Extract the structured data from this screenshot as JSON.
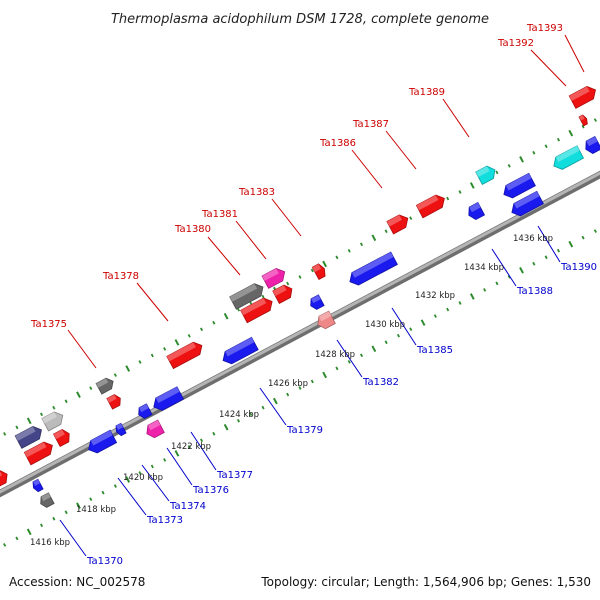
{
  "title": "Thermoplasma acidophilum DSM 1728, complete genome",
  "footer": {
    "accession": "Accession: NC_002578",
    "summary": "Topology: circular; Length: 1,564,906 bp; Genes: 1,530"
  },
  "colors": {
    "forward_label": "#cc0000",
    "reverse_label": "#0000cc",
    "backbone": "#888888",
    "tick": "#2e8b2e",
    "red": "#ee1111",
    "blue": "#1a1aee",
    "cyan": "#11dddd",
    "magenta": "#ee22aa",
    "gray": "#666666",
    "silver": "#bbbbbb",
    "pink": "#ee8888",
    "navy": "#444488"
  },
  "scale_labels": [
    "1416 kbp",
    "1418 kbp",
    "1420 kbp",
    "1422 kbp",
    "1424 kbp",
    "1426 kbp",
    "1428 kbp",
    "1430 kbp",
    "1432 kbp",
    "1434 kbp",
    "1436 kbp"
  ],
  "forward_labels": [
    "Ta1375",
    "Ta1378",
    "Ta1380",
    "Ta1381",
    "Ta1383",
    "Ta1386",
    "Ta1387",
    "Ta1389",
    "Ta1392",
    "Ta1393"
  ],
  "reverse_labels": [
    "Ta1370",
    "Ta1373",
    "Ta1374",
    "Ta1376",
    "Ta1377",
    "Ta1379",
    "Ta1382",
    "Ta1385",
    "Ta1388",
    "Ta1390"
  ],
  "features": [
    {
      "strand": "forward",
      "color": "red"
    },
    {
      "strand": "forward",
      "color": "navy"
    },
    {
      "strand": "forward",
      "color": "red"
    },
    {
      "strand": "forward",
      "color": "silver"
    },
    {
      "strand": "forward",
      "color": "red"
    },
    {
      "strand": "forward",
      "color": "gray"
    },
    {
      "strand": "forward",
      "color": "red"
    },
    {
      "strand": "forward",
      "color": "gray"
    },
    {
      "strand": "forward",
      "color": "red"
    },
    {
      "strand": "forward",
      "color": "magenta"
    },
    {
      "strand": "forward",
      "color": "red"
    },
    {
      "strand": "forward",
      "color": "red"
    },
    {
      "strand": "forward",
      "color": "red"
    },
    {
      "strand": "forward",
      "color": "red"
    },
    {
      "strand": "forward",
      "color": "red"
    },
    {
      "strand": "forward",
      "color": "cyan"
    },
    {
      "strand": "forward",
      "color": "red"
    },
    {
      "strand": "forward",
      "color": "red"
    },
    {
      "strand": "reverse",
      "color": "blue"
    },
    {
      "strand": "reverse",
      "color": "gray"
    },
    {
      "strand": "reverse",
      "color": "blue"
    },
    {
      "strand": "reverse",
      "color": "blue"
    },
    {
      "strand": "reverse",
      "color": "blue"
    },
    {
      "strand": "reverse",
      "color": "magenta"
    },
    {
      "strand": "reverse",
      "color": "blue"
    },
    {
      "strand": "reverse",
      "color": "blue"
    },
    {
      "strand": "reverse",
      "color": "blue"
    },
    {
      "strand": "reverse",
      "color": "pink"
    },
    {
      "strand": "reverse",
      "color": "blue"
    },
    {
      "strand": "reverse",
      "color": "blue"
    },
    {
      "strand": "reverse",
      "color": "blue"
    },
    {
      "strand": "reverse",
      "color": "blue"
    },
    {
      "strand": "reverse",
      "color": "cyan"
    },
    {
      "strand": "reverse",
      "color": "blue"
    }
  ]
}
